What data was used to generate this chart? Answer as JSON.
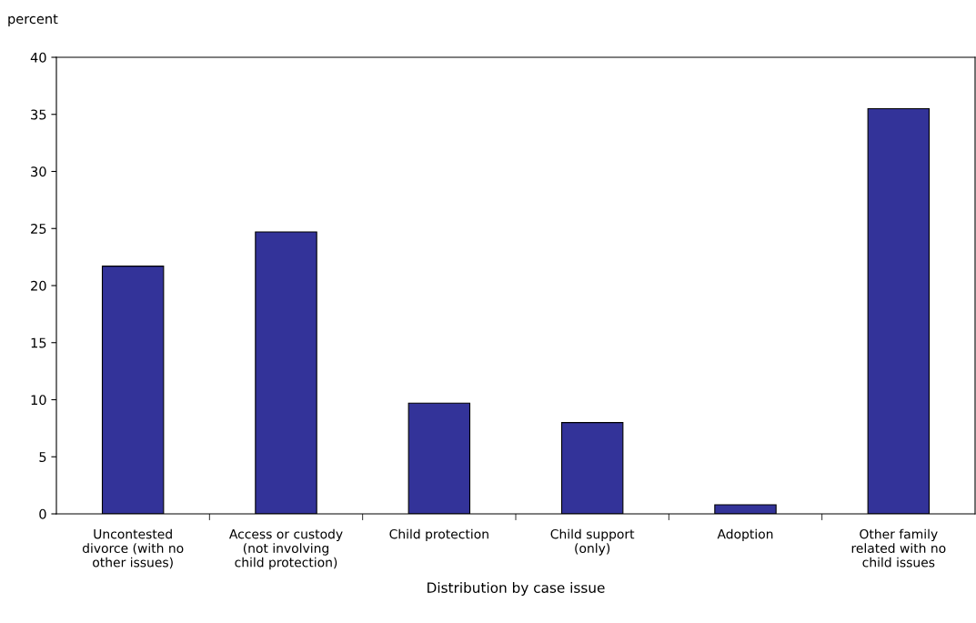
{
  "chart_data": {
    "type": "bar",
    "ylabel": "percent",
    "xlabel": "Distribution by case issue",
    "categories": [
      "Uncontested\ndivorce (with no\nother issues)",
      "Access or custody\n(not involving\nchild protection)",
      "Child protection",
      "Child support\n(only)",
      "Adoption",
      "Other family\nrelated with no\nchild issues"
    ],
    "values": [
      21.7,
      24.7,
      9.7,
      8.0,
      0.8,
      35.5
    ],
    "color": "#333399",
    "ylim": [
      0,
      40
    ],
    "yticks": [
      0,
      5,
      10,
      15,
      20,
      25,
      30,
      35,
      40
    ],
    "grid": false,
    "legend": false
  }
}
